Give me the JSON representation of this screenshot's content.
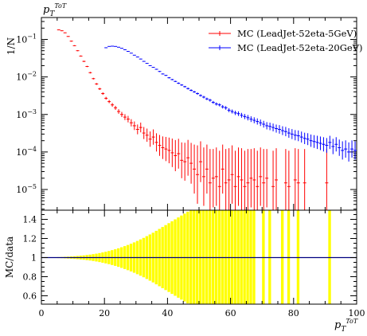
{
  "chart_data": [
    {
      "type": "scatter",
      "panel": "main",
      "title": "p_T^{ToT}",
      "ylabel": "1/N",
      "yscale": "log",
      "ylim": [
        2.5e-06,
        0.4
      ],
      "xlim": [
        0,
        100
      ],
      "ytick_labels": [
        "10^{-1}",
        "10^{-2}",
        "10^{-3}",
        "10^{-4}",
        "10^{-5}"
      ],
      "legend_position": "top-right",
      "series": [
        {
          "name": "MC (LeadJet-52eta-5GeV)",
          "color": "#ff0000",
          "x": [
            5.5,
            6.5,
            7.5,
            8.5,
            9.5,
            10.5,
            11.5,
            12.5,
            13.5,
            14.5,
            15.5,
            16.5,
            17.5,
            18.5,
            19.5,
            20.5,
            21.5,
            22.5,
            23.5,
            24.5,
            25.5,
            26.5,
            27.5,
            28.5,
            29.5,
            30.5,
            31.5,
            32.5,
            33.5,
            34.5,
            35.5,
            36.5,
            37.5,
            38.5,
            39.5,
            40.5,
            41.5,
            42.5,
            43.5,
            44.5,
            45.5,
            46.5,
            47.5,
            48.5,
            49.5,
            50.5,
            51.5,
            52.5,
            53.5,
            54.5,
            55.5,
            56.5,
            57.5,
            58.5,
            59.5,
            60.5,
            61.5,
            62.5,
            63.5,
            64.5,
            65.5,
            66.5,
            67.5,
            68.5,
            69.5,
            70.5,
            71.5,
            73.5,
            74.5,
            77.5,
            78.5,
            80.5,
            81.5,
            83.5,
            90.5
          ],
          "y": [
            0.18,
            0.17,
            0.15,
            0.12,
            0.09,
            0.068,
            0.05,
            0.036,
            0.026,
            0.019,
            0.013,
            0.009,
            0.0065,
            0.0048,
            0.0036,
            0.0027,
            0.0022,
            0.0018,
            0.0015,
            0.0012,
            0.001,
            0.00085,
            0.00075,
            0.0006,
            0.0005,
            0.0004,
            0.00045,
            0.00032,
            0.00028,
            0.00022,
            0.00025,
            0.00018,
            0.00015,
            0.00013,
            0.00012,
            0.00011,
            9.5e-05,
            8e-05,
            9e-05,
            6e-05,
            5.5e-05,
            7e-05,
            5e-05,
            3.5e-05,
            2.5e-05,
            5.5e-05,
            2.2e-05,
            3.5e-05,
            1.5e-05,
            2e-05,
            2.2e-05,
            1.2e-05,
            3.5e-05,
            1.5e-05,
            1.8e-05,
            2.5e-05,
            1.2e-05,
            2.2e-05,
            1.8e-05,
            1.2e-05,
            1.5e-05,
            2e-05,
            1.8e-05,
            1.2e-05,
            2.2e-05,
            1.5e-05,
            2e-05,
            1.2e-05,
            1.8e-05,
            1.5e-05,
            1.2e-05,
            1.8e-05,
            1.5e-05,
            1.5e-05,
            1.5e-05
          ],
          "yerr_factor": [
            1.02,
            1.02,
            1.02,
            1.02,
            1.03,
            1.03,
            1.03,
            1.03,
            1.04,
            1.04,
            1.05,
            1.05,
            1.06,
            1.07,
            1.08,
            1.09,
            1.1,
            1.12,
            1.13,
            1.15,
            1.17,
            1.2,
            1.22,
            1.25,
            1.3,
            1.35,
            1.35,
            1.45,
            1.5,
            1.6,
            1.6,
            1.75,
            1.9,
            2.0,
            2.1,
            2.2,
            2.4,
            2.6,
            2.5,
            3.0,
            3.2,
            3.0,
            3.5,
            4.5,
            6.0,
            3.5,
            6.0,
            4.5,
            8.0,
            6.0,
            6.0,
            9.0,
            4.5,
            8.0,
            7.0,
            6.0,
            9.0,
            6.0,
            7.0,
            9.0,
            8.0,
            6.0,
            7.0,
            9.0,
            6.0,
            8.0,
            6.0,
            9.0,
            7.0,
            8.0,
            9.0,
            7.0,
            8.0,
            8.0,
            8.0
          ]
        },
        {
          "name": "MC (LeadJet-52eta-20GeV)",
          "color": "#0000ff",
          "x": [
            20.5,
            21.5,
            22.5,
            23.5,
            24.5,
            25.5,
            26.5,
            27.5,
            28.5,
            29.5,
            30.5,
            31.5,
            32.5,
            33.5,
            34.5,
            35.5,
            36.5,
            37.5,
            38.5,
            39.5,
            40.5,
            41.5,
            42.5,
            43.5,
            44.5,
            45.5,
            46.5,
            47.5,
            48.5,
            49.5,
            50.5,
            51.5,
            52.5,
            53.5,
            54.5,
            55.5,
            56.5,
            57.5,
            58.5,
            59.5,
            60.5,
            61.5,
            62.5,
            63.5,
            64.5,
            65.5,
            66.5,
            67.5,
            68.5,
            69.5,
            70.5,
            71.5,
            72.5,
            73.5,
            74.5,
            75.5,
            76.5,
            77.5,
            78.5,
            79.5,
            80.5,
            81.5,
            82.5,
            83.5,
            84.5,
            85.5,
            86.5,
            87.5,
            88.5,
            89.5,
            90.5,
            91.5,
            92.5,
            93.5,
            94.5,
            95.5,
            96.5,
            97.5,
            98.5,
            99.5
          ],
          "y": [
            0.06,
            0.065,
            0.066,
            0.065,
            0.062,
            0.058,
            0.053,
            0.048,
            0.043,
            0.038,
            0.034,
            0.03,
            0.026,
            0.023,
            0.02,
            0.018,
            0.016,
            0.014,
            0.012,
            0.011,
            0.0095,
            0.0085,
            0.0076,
            0.0068,
            0.0061,
            0.0055,
            0.0049,
            0.0044,
            0.004,
            0.0036,
            0.0032,
            0.0029,
            0.0026,
            0.0024,
            0.0021,
            0.0019,
            0.0018,
            0.0016,
            0.0015,
            0.0013,
            0.0012,
            0.0011,
            0.00105,
            0.00095,
            0.00088,
            0.00082,
            0.00075,
            0.0007,
            0.00065,
            0.0006,
            0.00055,
            0.0005,
            0.00048,
            0.00045,
            0.00042,
            0.0004,
            0.00037,
            0.00035,
            0.00032,
            0.0003,
            0.00028,
            0.00027,
            0.00025,
            0.00023,
            0.00022,
            0.0002,
            0.00019,
            0.00018,
            0.00017,
            0.00016,
            0.00015,
            0.00018,
            0.00014,
            0.00016,
            0.00013,
            0.00011,
            0.00012,
            0.0001,
            0.00012,
            0.00011
          ],
          "yerr_factor": [
            1.01,
            1.01,
            1.01,
            1.01,
            1.01,
            1.01,
            1.01,
            1.01,
            1.01,
            1.01,
            1.02,
            1.02,
            1.02,
            1.02,
            1.02,
            1.02,
            1.03,
            1.03,
            1.03,
            1.03,
            1.04,
            1.04,
            1.04,
            1.05,
            1.05,
            1.05,
            1.06,
            1.06,
            1.06,
            1.07,
            1.07,
            1.08,
            1.08,
            1.09,
            1.09,
            1.1,
            1.1,
            1.11,
            1.12,
            1.13,
            1.13,
            1.14,
            1.15,
            1.16,
            1.17,
            1.18,
            1.19,
            1.2,
            1.21,
            1.22,
            1.23,
            1.25,
            1.26,
            1.27,
            1.28,
            1.3,
            1.31,
            1.33,
            1.34,
            1.36,
            1.37,
            1.39,
            1.4,
            1.42,
            1.44,
            1.46,
            1.48,
            1.5,
            1.52,
            1.55,
            1.57,
            1.5,
            1.6,
            1.55,
            1.65,
            1.75,
            1.7,
            1.8,
            1.7,
            1.75
          ]
        }
      ]
    },
    {
      "type": "bar",
      "panel": "ratio",
      "ylabel": "MC/data",
      "xlabel": "p_T^{ToT}",
      "xlim": [
        0,
        100
      ],
      "ylim": [
        0.55,
        1.52
      ],
      "xticks": [
        0,
        20,
        40,
        60,
        80,
        100
      ],
      "yticks": [
        0.6,
        0.8,
        1.0,
        1.2,
        1.4
      ],
      "ytick_labels": [
        "0.6",
        "0.8",
        "1",
        "1.2",
        "1.4"
      ],
      "band_color": "#ffff00",
      "reference_line": 1.0,
      "reference_line_color": "#000080",
      "band_x_start": 5,
      "band_half_width": [
        0.005,
        0.006,
        0.008,
        0.01,
        0.012,
        0.014,
        0.017,
        0.02,
        0.023,
        0.027,
        0.031,
        0.036,
        0.041,
        0.047,
        0.054,
        0.061,
        0.069,
        0.078,
        0.087,
        0.097,
        0.108,
        0.12,
        0.132,
        0.145,
        0.159,
        0.174,
        0.19,
        0.206,
        0.224,
        0.242,
        0.26,
        0.28,
        0.3,
        0.32,
        0.34,
        0.36,
        0.38,
        0.4,
        0.42,
        0.44,
        0.46,
        0.48,
        0.5,
        0.5,
        0.5,
        0.5,
        0.5,
        0.5,
        0.5,
        0.5,
        0.5,
        0.5,
        0.5,
        0.5,
        0.5,
        0.5,
        0.5,
        0.5,
        0.5,
        0.5,
        0.5,
        0.5,
        0.5,
        0,
        0,
        0.5,
        0,
        0.5,
        0,
        0,
        0,
        0.5,
        0,
        0.5,
        0,
        0,
        0.5,
        0,
        0,
        0,
        0,
        0,
        0,
        0,
        0,
        0,
        0.5,
        0,
        0,
        0,
        0,
        0,
        0,
        0,
        0
      ],
      "band_columns_x": [
        5,
        6,
        7,
        8,
        9,
        10,
        11,
        12,
        13,
        14,
        15,
        16,
        17,
        18,
        19,
        20,
        21,
        22,
        23,
        24,
        25,
        26,
        27,
        28,
        29,
        30,
        31,
        32,
        33,
        34,
        35,
        36,
        37,
        38,
        39,
        40,
        41,
        42,
        43,
        44,
        45,
        46,
        47,
        48,
        49,
        50,
        51,
        52,
        53,
        54,
        55,
        56,
        57,
        58,
        59,
        60,
        61,
        62,
        63,
        64,
        65,
        66,
        67,
        68,
        69,
        70,
        71,
        72,
        73,
        74,
        75,
        76,
        77,
        78,
        79,
        80,
        81,
        82,
        83,
        84,
        85,
        86,
        87,
        88,
        89,
        90,
        91,
        92,
        93,
        94,
        95,
        96,
        97,
        98,
        99
      ]
    }
  ]
}
